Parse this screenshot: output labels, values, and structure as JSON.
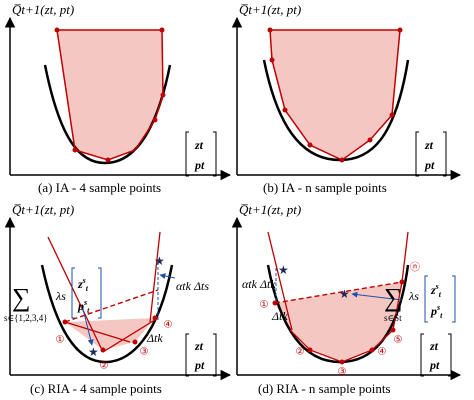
{
  "panels": {
    "a": {
      "ylabel": "Q̅t+1(zt, pt)",
      "caption": "(a)  IA - 4 sample points"
    },
    "b": {
      "ylabel": "Q̅t+1(zt, pt)",
      "caption": "(b)  IA - n sample points"
    },
    "c": {
      "ylabel": "Q̅t+1(zt, pt)",
      "caption": "(c)  RIA - 4 sample points",
      "sum_index": "s∈{1,2,3,4}",
      "lambda": "λs",
      "alpha_label": "αtk Δts",
      "delta_label": "Δtk",
      "circled": [
        "①",
        "②",
        "③",
        "④"
      ]
    },
    "d": {
      "ylabel": "Q̅t+1(zt, pt)",
      "caption": "(d)  RIA - n sample points",
      "sum_index": "s∈St",
      "lambda": "λs",
      "alpha_label": "αtk Δtk",
      "delta_label": "Δtk",
      "circled": [
        "①",
        "②",
        "③",
        "④",
        "⑤",
        "ⓝ"
      ]
    }
  },
  "xvec": [
    "zt",
    "pt"
  ],
  "colors": {
    "curve": "#000000",
    "approx": "#c00000",
    "fill": "#f4c7c3",
    "accent": "#1f4fa8"
  }
}
